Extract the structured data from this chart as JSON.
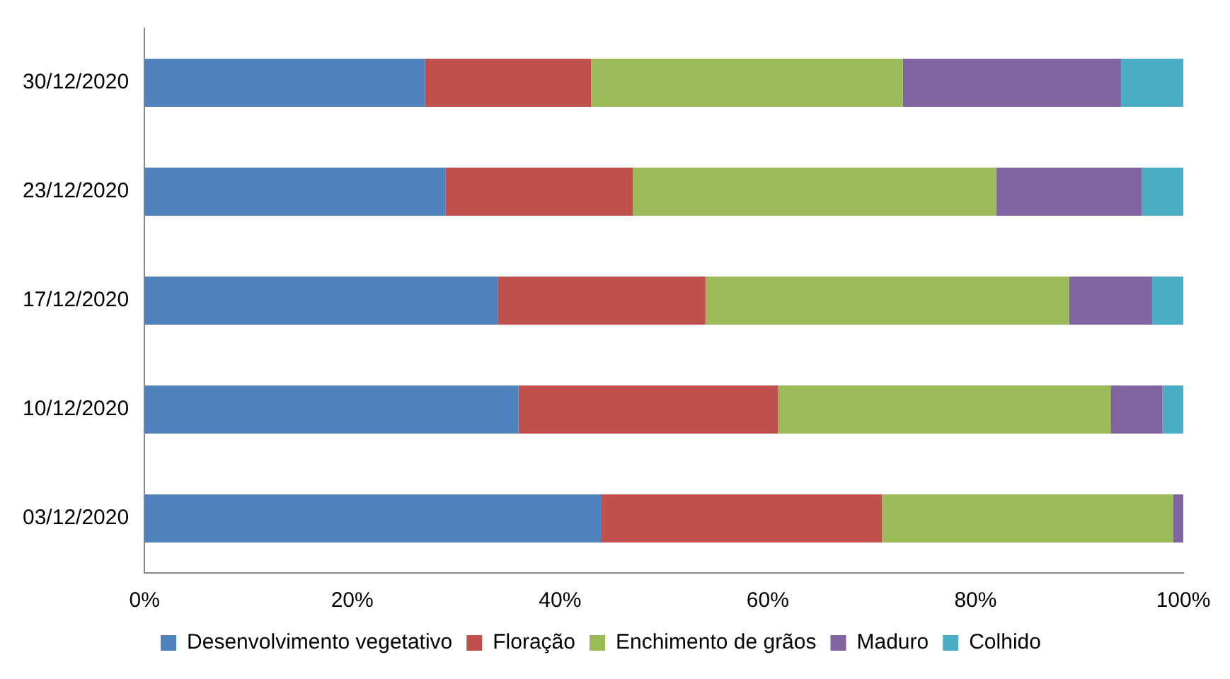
{
  "chart_data": {
    "type": "bar",
    "orientation": "horizontal",
    "stacked": true,
    "categories": [
      "30/12/2020",
      "23/12/2020",
      "17/12/2020",
      "10/12/2020",
      "03/12/2020"
    ],
    "series": [
      {
        "name": "Desenvolvimento vegetativo",
        "color": "#4f81bd",
        "values": [
          27,
          29,
          34,
          36,
          44
        ]
      },
      {
        "name": "Floração",
        "color": "#c0504d",
        "values": [
          16,
          18,
          20,
          25,
          27
        ]
      },
      {
        "name": "Enchimento de grãos",
        "color": "#9bbb59",
        "values": [
          30,
          35,
          35,
          32,
          28
        ]
      },
      {
        "name": "Maduro",
        "color": "#8064a2",
        "values": [
          21,
          14,
          8,
          5,
          1
        ]
      },
      {
        "name": "Colhido",
        "color": "#4bacc6",
        "values": [
          6,
          4,
          3,
          2,
          0
        ]
      }
    ],
    "xlim": [
      0,
      100
    ],
    "xticks": [
      {
        "value": 0,
        "label": "0%"
      },
      {
        "value": 20,
        "label": "20%"
      },
      {
        "value": 40,
        "label": "40%"
      },
      {
        "value": 60,
        "label": "60%"
      },
      {
        "value": 80,
        "label": "80%"
      },
      {
        "value": 100,
        "label": "100%"
      }
    ],
    "grid": false,
    "legend": "bottom"
  }
}
